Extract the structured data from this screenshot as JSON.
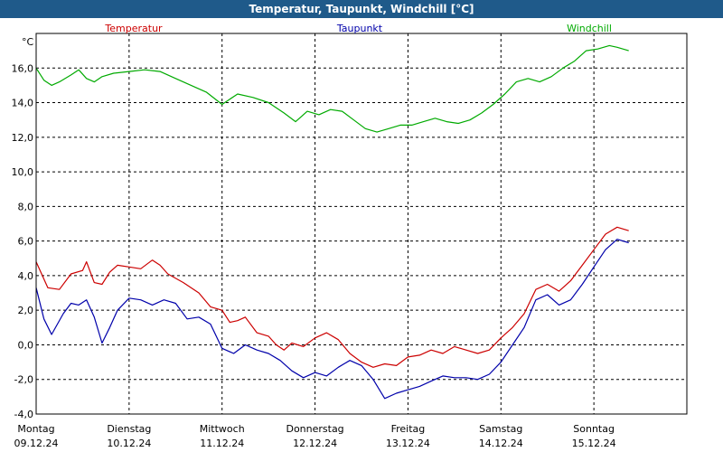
{
  "window": {
    "title": "Temperatur, Taupunkt, Windchill [°C]"
  },
  "chart_data": {
    "type": "line",
    "title": "Temperatur, Taupunkt, Windchill [°C]",
    "ylabel": "°C",
    "ylim": [
      -4.0,
      18.0
    ],
    "xlim": [
      0,
      168
    ],
    "grid": true,
    "y_ticks": [
      {
        "value": -4,
        "label": "-4,0"
      },
      {
        "value": -2,
        "label": "-2,0"
      },
      {
        "value": 0,
        "label": "0,0"
      },
      {
        "value": 2,
        "label": "2,0"
      },
      {
        "value": 4,
        "label": "4,0"
      },
      {
        "value": 6,
        "label": "6,0"
      },
      {
        "value": 8,
        "label": "8,0"
      },
      {
        "value": 10,
        "label": "10,0"
      },
      {
        "value": 12,
        "label": "12,0"
      },
      {
        "value": 14,
        "label": "14,0"
      },
      {
        "value": 16,
        "label": "16,0"
      }
    ],
    "x_ticks": [
      {
        "value": 0,
        "day": "Montag",
        "date": "09.12.24"
      },
      {
        "value": 24,
        "day": "Dienstag",
        "date": "10.12.24"
      },
      {
        "value": 48,
        "day": "Mittwoch",
        "date": "11.12.24"
      },
      {
        "value": 72,
        "day": "Donnerstag",
        "date": "12.12.24"
      },
      {
        "value": 96,
        "day": "Freitag",
        "date": "13.12.24"
      },
      {
        "value": 120,
        "day": "Samstag",
        "date": "14.12.24"
      },
      {
        "value": 144,
        "day": "Sonntag",
        "date": "15.12.24"
      }
    ],
    "series": [
      {
        "name": "Temperatur",
        "color": "#cc0000",
        "points": [
          [
            0,
            4.8
          ],
          [
            3,
            3.3
          ],
          [
            6,
            3.2
          ],
          [
            9,
            4.1
          ],
          [
            12,
            4.3
          ],
          [
            13,
            4.8
          ],
          [
            15,
            3.6
          ],
          [
            17,
            3.5
          ],
          [
            19,
            4.2
          ],
          [
            21,
            4.6
          ],
          [
            24,
            4.5
          ],
          [
            27,
            4.4
          ],
          [
            30,
            4.9
          ],
          [
            32,
            4.6
          ],
          [
            34,
            4.1
          ],
          [
            38,
            3.6
          ],
          [
            42,
            3.0
          ],
          [
            45,
            2.2
          ],
          [
            48,
            2.0
          ],
          [
            50,
            1.3
          ],
          [
            52,
            1.4
          ],
          [
            54,
            1.6
          ],
          [
            57,
            0.7
          ],
          [
            60,
            0.5
          ],
          [
            62,
            0.0
          ],
          [
            64,
            -0.3
          ],
          [
            66,
            0.1
          ],
          [
            69,
            -0.1
          ],
          [
            72,
            0.4
          ],
          [
            75,
            0.7
          ],
          [
            78,
            0.3
          ],
          [
            81,
            -0.5
          ],
          [
            84,
            -1.0
          ],
          [
            87,
            -1.3
          ],
          [
            90,
            -1.1
          ],
          [
            93,
            -1.2
          ],
          [
            96,
            -0.7
          ],
          [
            99,
            -0.6
          ],
          [
            102,
            -0.3
          ],
          [
            105,
            -0.5
          ],
          [
            108,
            -0.1
          ],
          [
            111,
            -0.3
          ],
          [
            114,
            -0.5
          ],
          [
            117,
            -0.3
          ],
          [
            120,
            0.4
          ],
          [
            123,
            1.0
          ],
          [
            126,
            1.8
          ],
          [
            129,
            3.2
          ],
          [
            132,
            3.5
          ],
          [
            135,
            3.1
          ],
          [
            138,
            3.7
          ],
          [
            141,
            4.6
          ],
          [
            144,
            5.5
          ],
          [
            147,
            6.4
          ],
          [
            150,
            6.8
          ],
          [
            153,
            6.6
          ]
        ]
      },
      {
        "name": "Taupunkt",
        "color": "#0000aa",
        "points": [
          [
            0,
            3.3
          ],
          [
            2,
            1.5
          ],
          [
            4,
            0.6
          ],
          [
            7,
            1.8
          ],
          [
            9,
            2.4
          ],
          [
            11,
            2.3
          ],
          [
            13,
            2.6
          ],
          [
            15,
            1.6
          ],
          [
            17,
            0.1
          ],
          [
            19,
            1.0
          ],
          [
            21,
            2.0
          ],
          [
            24,
            2.7
          ],
          [
            27,
            2.6
          ],
          [
            30,
            2.3
          ],
          [
            33,
            2.6
          ],
          [
            36,
            2.4
          ],
          [
            39,
            1.5
          ],
          [
            42,
            1.6
          ],
          [
            45,
            1.2
          ],
          [
            48,
            -0.2
          ],
          [
            51,
            -0.5
          ],
          [
            54,
            0.0
          ],
          [
            57,
            -0.3
          ],
          [
            60,
            -0.5
          ],
          [
            63,
            -0.9
          ],
          [
            66,
            -1.5
          ],
          [
            69,
            -1.9
          ],
          [
            72,
            -1.6
          ],
          [
            75,
            -1.8
          ],
          [
            78,
            -1.3
          ],
          [
            81,
            -0.9
          ],
          [
            84,
            -1.2
          ],
          [
            87,
            -2.0
          ],
          [
            90,
            -3.1
          ],
          [
            93,
            -2.8
          ],
          [
            96,
            -2.6
          ],
          [
            99,
            -2.4
          ],
          [
            102,
            -2.1
          ],
          [
            105,
            -1.8
          ],
          [
            108,
            -1.9
          ],
          [
            111,
            -1.9
          ],
          [
            114,
            -2.0
          ],
          [
            117,
            -1.7
          ],
          [
            120,
            -1.0
          ],
          [
            123,
            0.0
          ],
          [
            126,
            1.0
          ],
          [
            129,
            2.6
          ],
          [
            132,
            2.9
          ],
          [
            135,
            2.3
          ],
          [
            138,
            2.6
          ],
          [
            141,
            3.5
          ],
          [
            144,
            4.5
          ],
          [
            147,
            5.5
          ],
          [
            150,
            6.1
          ],
          [
            153,
            5.9
          ]
        ]
      },
      {
        "name": "Windchill",
        "color": "#00aa00",
        "points": [
          [
            0,
            16.0
          ],
          [
            2,
            15.3
          ],
          [
            4,
            15.0
          ],
          [
            6,
            15.2
          ],
          [
            9,
            15.6
          ],
          [
            11,
            15.9
          ],
          [
            13,
            15.4
          ],
          [
            15,
            15.2
          ],
          [
            17,
            15.5
          ],
          [
            20,
            15.7
          ],
          [
            24,
            15.8
          ],
          [
            28,
            15.9
          ],
          [
            32,
            15.8
          ],
          [
            36,
            15.4
          ],
          [
            40,
            15.0
          ],
          [
            44,
            14.6
          ],
          [
            48,
            13.9
          ],
          [
            50,
            14.2
          ],
          [
            52,
            14.5
          ],
          [
            56,
            14.3
          ],
          [
            60,
            14.0
          ],
          [
            64,
            13.4
          ],
          [
            67,
            12.9
          ],
          [
            70,
            13.5
          ],
          [
            73,
            13.3
          ],
          [
            76,
            13.6
          ],
          [
            79,
            13.5
          ],
          [
            82,
            13.0
          ],
          [
            85,
            12.5
          ],
          [
            88,
            12.3
          ],
          [
            91,
            12.5
          ],
          [
            94,
            12.7
          ],
          [
            97,
            12.7
          ],
          [
            100,
            12.9
          ],
          [
            103,
            13.1
          ],
          [
            106,
            12.9
          ],
          [
            109,
            12.8
          ],
          [
            112,
            13.0
          ],
          [
            115,
            13.4
          ],
          [
            118,
            13.9
          ],
          [
            121,
            14.5
          ],
          [
            124,
            15.2
          ],
          [
            127,
            15.4
          ],
          [
            130,
            15.2
          ],
          [
            133,
            15.5
          ],
          [
            136,
            16.0
          ],
          [
            139,
            16.4
          ],
          [
            142,
            17.0
          ],
          [
            145,
            17.1
          ],
          [
            148,
            17.3
          ],
          [
            150,
            17.2
          ],
          [
            153,
            17.0
          ]
        ]
      }
    ],
    "legend": [
      "Temperatur",
      "Taupunkt",
      "Windchill"
    ],
    "legend_position": "top"
  }
}
